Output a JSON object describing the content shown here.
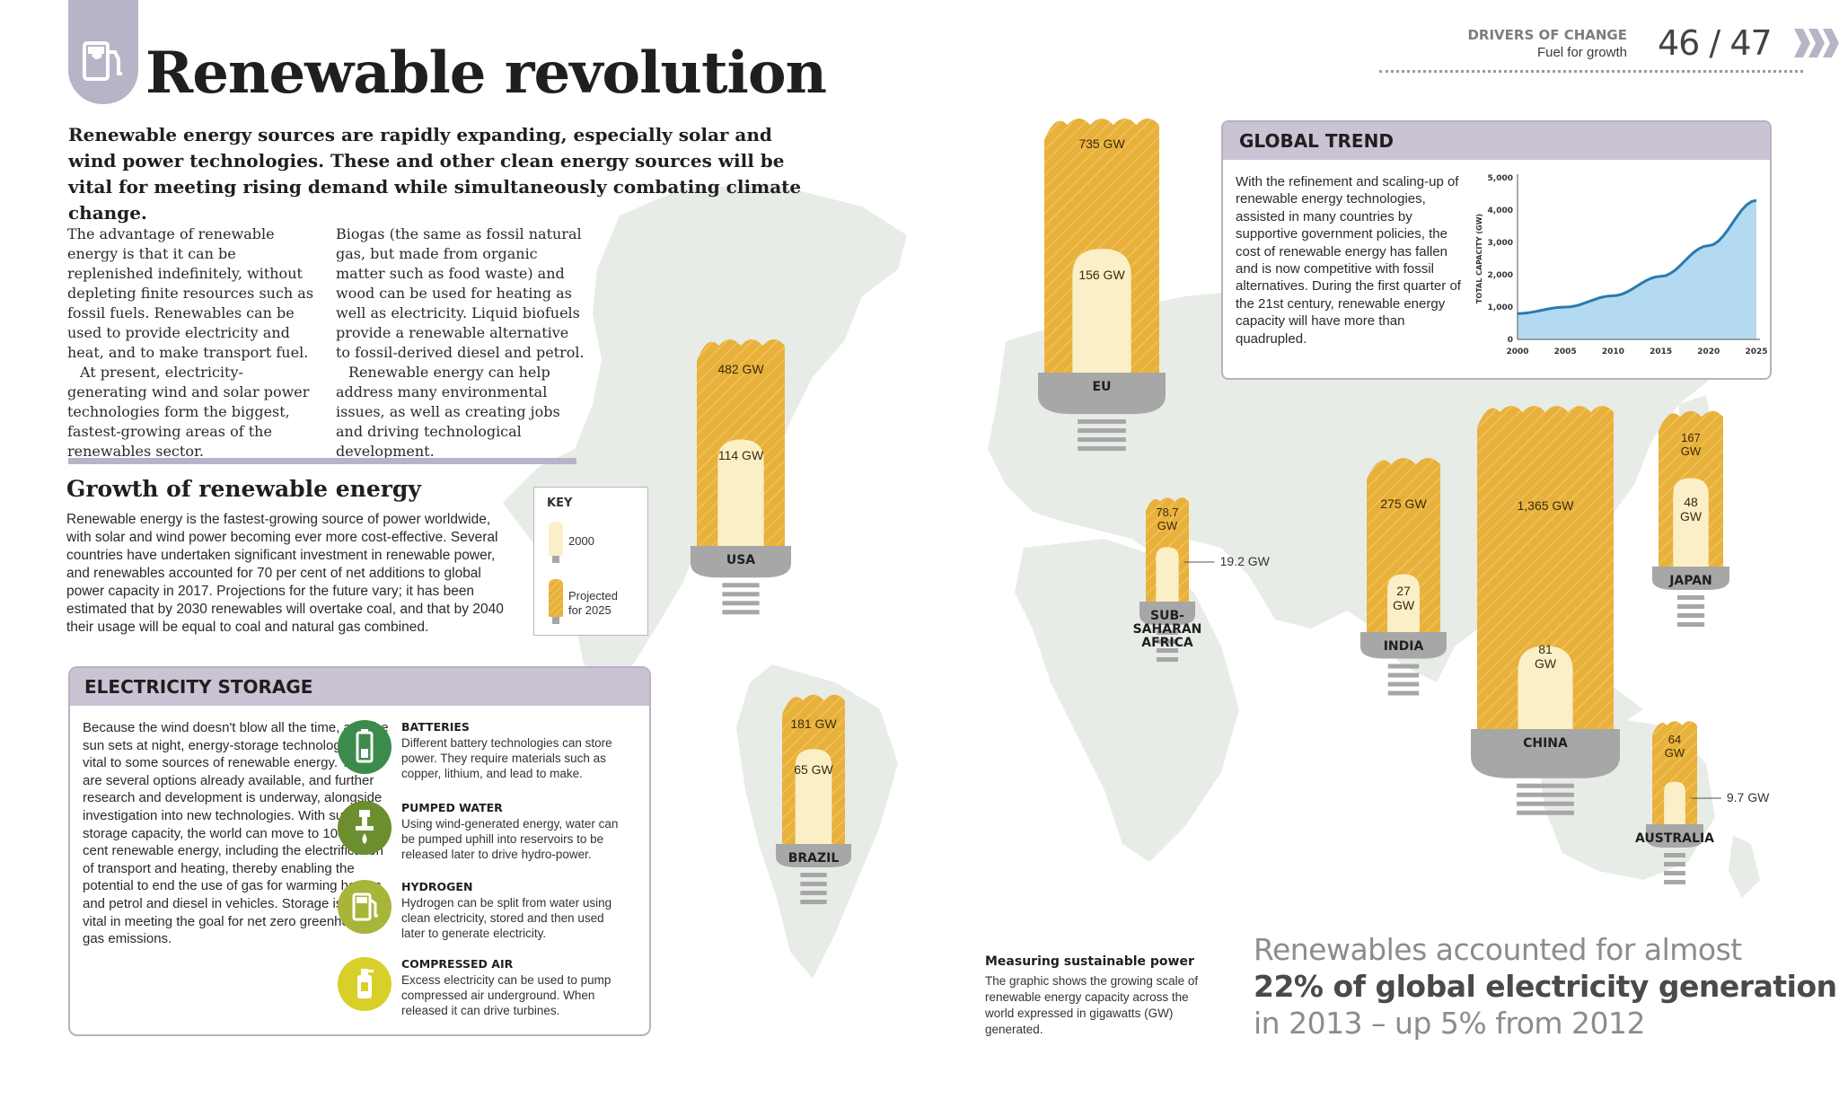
{
  "header": {
    "title": "Renewable revolution",
    "section": "DRIVERS OF CHANGE",
    "subsection": "Fuel for growth",
    "pages": "46 / 47"
  },
  "intro": "Renewable energy sources are rapidly expanding, especially solar and wind power technologies. These and other clean energy sources will be vital for meeting rising demand while simultaneously combating climate change.",
  "body": {
    "col1_p1": "The advantage of renewable energy is that it can be replenished indefinitely, without depleting finite resources such as fossil fuels. Renewables can be used to provide electricity and heat, and to make transport fuel.",
    "col1_p2": "At present, electricity-generating wind and solar power technologies form the biggest, fastest-growing areas of the renewables sector.",
    "col2_p1": "Biogas (the same as fossil natural gas, but made from organic matter such as food waste) and wood can be used for heating as well as electricity. Liquid biofuels provide a renewable alternative to fossil-derived diesel and petrol.",
    "col2_p2": "Renewable energy can help address many environmental issues, as well as creating jobs and driving technological development."
  },
  "growth": {
    "title": "Growth of renewable energy",
    "text": "Renewable energy is the fastest-growing source of power worldwide, with solar and wind power becoming ever more cost-effective. Several countries have undertaken significant investment in renewable power, and renewables accounted for 70 per cent of net additions to global power capacity in 2017. Projections for the future vary; it has been estimated that by 2030 renewables will overtake coal, and that by 2040 their usage will be equal to coal and natural gas combined."
  },
  "key": {
    "title": "KEY",
    "item_2000": "2000",
    "item_2025_line1": "Projected",
    "item_2025_line2": "for 2025"
  },
  "storage": {
    "title": "ELECTRICITY STORAGE",
    "text": "Because the wind doesn't blow all the time, and the sun sets at night, energy-storage technologies are vital to some sources of renewable energy. There are several options already available, and further research and development is underway, alongside investigation into new technologies. With sufficient storage capacity, the world can move to 100 per cent renewable energy, including the electrification of transport and heating, thereby enabling the potential to end the use of gas for warming homes and petrol and diesel in vehicles. Storage is thus vital in meeting the goal for net zero greenhouse gas emissions.",
    "items": [
      {
        "title": "BATTERIES",
        "desc": "Different battery technologies can store power. They require materials such as copper, lithium, and lead to make.",
        "icon": "battery-icon",
        "color": "#3d8a4d"
      },
      {
        "title": "PUMPED WATER",
        "desc": "Using wind-generated energy, water can be pumped uphill into reservoirs to be released later to drive hydro-power.",
        "icon": "water-tap-icon",
        "color": "#6c8e2e"
      },
      {
        "title": "HYDROGEN",
        "desc": "Hydrogen can be split from water using clean electricity, stored and then used later to generate electricity.",
        "icon": "fuel-pump-icon",
        "color": "#a8b43a"
      },
      {
        "title": "COMPRESSED AIR",
        "desc": "Excess electricity can be used to pump compressed air underground. When released it can drive turbines.",
        "icon": "air-canister-icon",
        "color": "#d9cf2b"
      }
    ]
  },
  "trend": {
    "title": "GLOBAL TREND",
    "text": "With the refinement and scaling-up of renewable energy technologies, assisted in many countries by supportive government policies, the cost of renewable energy has fallen and is now competitive with fossil alternatives. During the first quarter of the 21st century, renewable energy capacity will have more than quadrupled."
  },
  "chart_data": {
    "type": "area",
    "ylabel": "TOTAL CAPACITY (GW)",
    "xlabel": "",
    "title": "",
    "x": [
      2000,
      2005,
      2010,
      2015,
      2020,
      2025
    ],
    "xticks": [
      "2000",
      "2005",
      "2010",
      "2015",
      "2020",
      "2025"
    ],
    "yticks": [
      "0",
      "1,000",
      "2,000",
      "3,000",
      "4,000",
      "5,000"
    ],
    "ylim": [
      0,
      5000
    ],
    "xlim": [
      2000,
      2025
    ],
    "values": [
      800,
      1000,
      1350,
      1950,
      2900,
      4300
    ],
    "fill_color": "#b3daf0",
    "line_color": "#2a7ab0"
  },
  "regions": [
    {
      "name": "USA",
      "v2000": 114,
      "v2025": 482,
      "label2000": "114 GW",
      "label2025": "482 GW"
    },
    {
      "name": "EU",
      "v2000": 156,
      "v2025": 735,
      "label2000": "156 GW",
      "label2025": "735 GW"
    },
    {
      "name": "BRAZIL",
      "v2000": 65,
      "v2025": 181,
      "label2000": "65 GW",
      "label2025": "181 GW"
    },
    {
      "name": "SUB-SAHARAN AFRICA",
      "v2000": 19.2,
      "v2025": 78.7,
      "label2000": "19.2 GW",
      "label2025": "78.7 GW"
    },
    {
      "name": "INDIA",
      "v2000": 27,
      "v2025": 275,
      "label2000": "27 GW",
      "label2025": "275 GW"
    },
    {
      "name": "CHINA",
      "v2000": 81,
      "v2025": 1365,
      "label2000": "81 GW",
      "label2025": "1,365 GW"
    },
    {
      "name": "JAPAN",
      "v2000": 48,
      "v2025": 167,
      "label2000": "48 GW",
      "label2025": "167 GW"
    },
    {
      "name": "AUSTRALIA",
      "v2000": 9.7,
      "v2025": 64,
      "label2000": "9.7 GW",
      "label2025": "64 GW"
    }
  ],
  "measure": {
    "title": "Measuring sustainable power",
    "text": "The graphic shows the growing scale of renewable energy capacity across the world expressed in gigawatts (GW) generated."
  },
  "stat": {
    "line1": "Renewables accounted for almost",
    "line2": "22% of global electricity generation",
    "line3": "in 2013 – up 5% from 2012"
  },
  "colors": {
    "bulb_2025": "#e8b13c",
    "bulb_2000": "#fbefc8",
    "base": "#a7a7a7",
    "map": "#e6ebe6",
    "panel": "#c9c3d4"
  }
}
